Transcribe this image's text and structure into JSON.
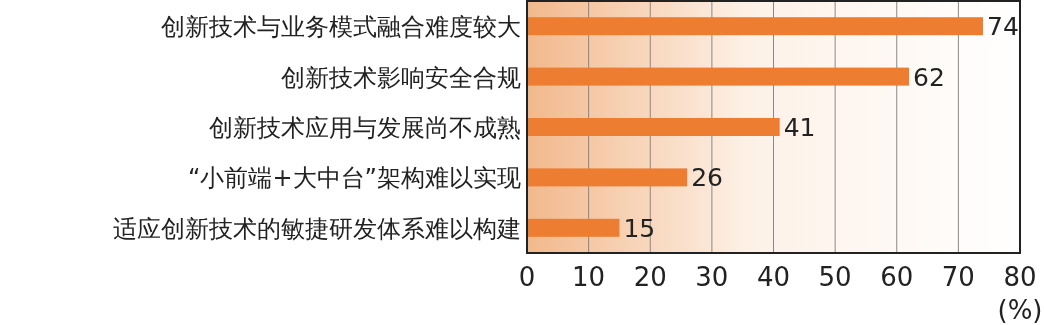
{
  "chart_data": {
    "type": "bar",
    "orientation": "horizontal",
    "categories": [
      "创新技术与业务模式融合难度较大",
      "创新技术影响安全合规",
      "创新技术应用与发展尚不成熟",
      "“小前端+大中台”架构难以实现",
      "适应创新技术的敏捷研发体系难以构建"
    ],
    "values": [
      74,
      62,
      41,
      26,
      15
    ],
    "color": "#ed7d31",
    "xlim": [
      0,
      80
    ],
    "xticks": [
      0,
      10,
      20,
      30,
      40,
      50,
      60,
      70,
      80
    ],
    "xlabel": "(%)",
    "grid": "x",
    "data_labels": true
  }
}
